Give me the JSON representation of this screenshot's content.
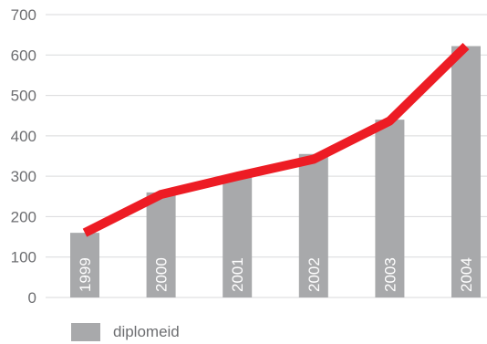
{
  "chart_data": {
    "type": "bar",
    "categories": [
      "1999",
      "2000",
      "2001",
      "2002",
      "2003",
      "2004"
    ],
    "series": [
      {
        "name": "diplomeid",
        "values": [
          160,
          260,
          300,
          355,
          440,
          622
        ]
      }
    ],
    "line_values": [
      160,
      255,
      300,
      342,
      437,
      622
    ],
    "ylim": [
      0,
      700
    ],
    "yticks": [
      "0",
      "100",
      "200",
      "300",
      "400",
      "500",
      "600",
      "700"
    ],
    "grid": true,
    "legend_position": "bottom-left",
    "colors": {
      "bar": "#a8a9ab",
      "line": "#ed1c24",
      "grid": "#d9dadb",
      "text": "#6d6e71",
      "bar_label": "#ffffff"
    }
  },
  "legend": {
    "label": "diplomeid"
  }
}
